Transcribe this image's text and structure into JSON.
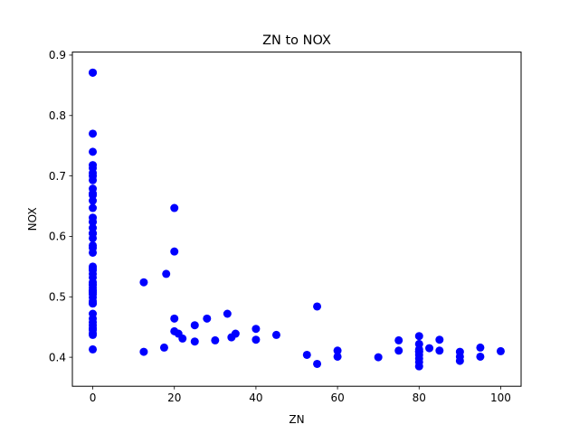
{
  "chart_data": {
    "type": "scatter",
    "title": "ZN to NOX",
    "xlabel": "ZN",
    "ylabel": "NOX",
    "xlim": [
      -5,
      105
    ],
    "ylim": [
      0.352,
      0.905
    ],
    "xticks": [
      0,
      20,
      40,
      60,
      80,
      100
    ],
    "xtick_labels": [
      "0",
      "20",
      "40",
      "60",
      "80",
      "100"
    ],
    "yticks": [
      0.4,
      0.5,
      0.6,
      0.7,
      0.8,
      0.9
    ],
    "ytick_labels": [
      "0.4",
      "0.5",
      "0.6",
      "0.7",
      "0.8",
      "0.9"
    ],
    "grid": false,
    "marker_color": "#0000ff",
    "series": [
      {
        "x": [
          0,
          0,
          0,
          0,
          0,
          0,
          0,
          0,
          0,
          0,
          0,
          0,
          0,
          0,
          0,
          0,
          0,
          0,
          0,
          0,
          0,
          0,
          0,
          0,
          0,
          0,
          0,
          0,
          0,
          0,
          0,
          0,
          0,
          0,
          0,
          0,
          0,
          0,
          0,
          0,
          0,
          0,
          0,
          0,
          0,
          0,
          0,
          0,
          0,
          0,
          12.5,
          12.5,
          17.5,
          18,
          20,
          20,
          20,
          20,
          21,
          22,
          25,
          25,
          28,
          30,
          33,
          34,
          35,
          40,
          40,
          45,
          52.5,
          55,
          55,
          60,
          60,
          70,
          75,
          75,
          80,
          80,
          80,
          80,
          80,
          80,
          80,
          80,
          80,
          82.5,
          85,
          85,
          90,
          90,
          90,
          95,
          95,
          100
        ],
        "y": [
          0.871,
          0.77,
          0.74,
          0.718,
          0.713,
          0.705,
          0.693,
          0.679,
          0.671,
          0.668,
          0.659,
          0.647,
          0.631,
          0.624,
          0.614,
          0.605,
          0.597,
          0.585,
          0.581,
          0.573,
          0.55,
          0.547,
          0.544,
          0.538,
          0.532,
          0.524,
          0.52,
          0.515,
          0.51,
          0.507,
          0.504,
          0.499,
          0.493,
          0.489,
          0.472,
          0.464,
          0.458,
          0.453,
          0.448,
          0.445,
          0.44,
          0.437,
          0.413,
          0.871,
          0.605,
          0.52,
          0.51,
          0.489,
          0.7,
          0.624,
          0.524,
          0.409,
          0.416,
          0.538,
          0.647,
          0.575,
          0.464,
          0.443,
          0.439,
          0.431,
          0.453,
          0.426,
          0.464,
          0.428,
          0.472,
          0.433,
          0.439,
          0.447,
          0.429,
          0.437,
          0.404,
          0.484,
          0.389,
          0.411,
          0.401,
          0.4,
          0.428,
          0.411,
          0.435,
          0.422,
          0.413,
          0.409,
          0.404,
          0.398,
          0.392,
          0.385,
          0.41,
          0.415,
          0.429,
          0.411,
          0.409,
          0.401,
          0.394,
          0.416,
          0.401,
          0.41
        ]
      }
    ]
  }
}
